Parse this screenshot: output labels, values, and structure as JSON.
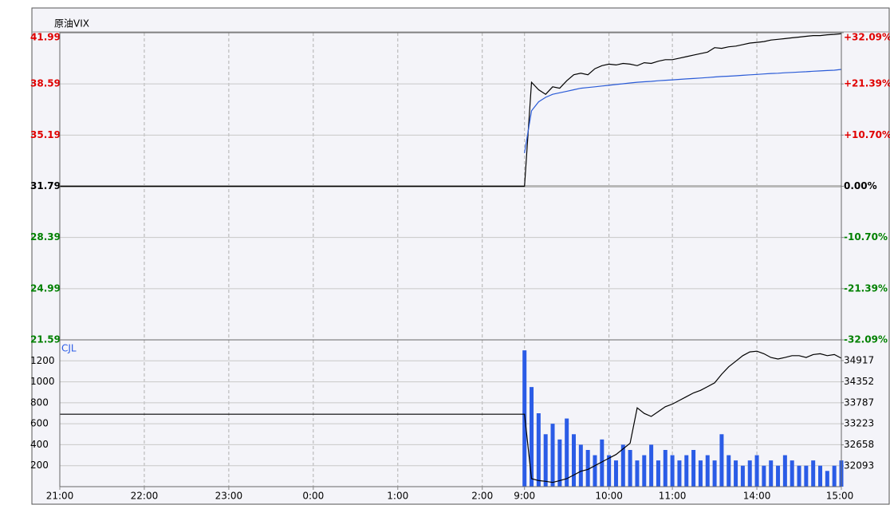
{
  "chart_data": [
    {
      "type": "line",
      "title": "原油VIX",
      "x": [
        0,
        330,
        335,
        340,
        345,
        350,
        355,
        360,
        365,
        370,
        375,
        380,
        385,
        390,
        395,
        400,
        405,
        410,
        415,
        420,
        425,
        430,
        435,
        440,
        445,
        450,
        455,
        460,
        465,
        470,
        475,
        480,
        485,
        490,
        495,
        500,
        505,
        510,
        515,
        520,
        525,
        530,
        535,
        540,
        545,
        550,
        555
      ],
      "xlim": [
        0,
        555
      ],
      "ylim": [
        21.59,
        41.99
      ],
      "yticks": [
        21.59,
        24.99,
        28.39,
        31.79,
        35.19,
        38.59,
        41.99
      ],
      "y2lim": [
        -32.09,
        32.09
      ],
      "y2ticks": [
        {
          "value": -32.09,
          "label": "-32.09%"
        },
        {
          "value": -21.39,
          "label": "-21.39%"
        },
        {
          "value": -10.7,
          "label": "-10.70%"
        },
        {
          "value": 0,
          "label": "0.00%"
        },
        {
          "value": 10.7,
          "label": "+10.70%"
        },
        {
          "value": 21.39,
          "label": "+21.39%"
        },
        {
          "value": 32.09,
          "label": "+32.09%"
        }
      ],
      "grid": true,
      "series": [
        {
          "color": "#000000",
          "values": [
            31.79,
            31.79,
            38.7,
            38.2,
            37.9,
            38.4,
            38.3,
            38.8,
            39.2,
            39.3,
            39.2,
            39.6,
            39.8,
            39.9,
            39.85,
            39.95,
            39.9,
            39.8,
            40.0,
            39.95,
            40.1,
            40.2,
            40.2,
            40.3,
            40.4,
            40.5,
            40.6,
            40.7,
            41.0,
            40.95,
            41.05,
            41.1,
            41.2,
            41.3,
            41.35,
            41.4,
            41.5,
            41.55,
            41.6,
            41.65,
            41.7,
            41.75,
            41.8,
            41.8,
            41.85,
            41.88,
            41.92
          ]
        },
        {
          "color": "#2a5bd7",
          "values": [
            null,
            34.0,
            36.8,
            37.4,
            37.7,
            37.9,
            38.0,
            38.1,
            38.2,
            38.3,
            38.35,
            38.4,
            38.45,
            38.5,
            38.55,
            38.6,
            38.65,
            38.7,
            38.73,
            38.76,
            38.8,
            38.83,
            38.86,
            38.89,
            38.92,
            38.95,
            38.98,
            39.01,
            39.05,
            39.08,
            39.1,
            39.13,
            39.16,
            39.19,
            39.22,
            39.25,
            39.28,
            39.3,
            39.33,
            39.35,
            39.38,
            39.4,
            39.43,
            39.45,
            39.48,
            39.5,
            39.55
          ]
        }
      ]
    },
    {
      "type": "bar",
      "title": "CJL",
      "x": [
        0,
        330,
        335,
        340,
        345,
        350,
        355,
        360,
        365,
        370,
        375,
        380,
        385,
        390,
        395,
        400,
        405,
        410,
        415,
        420,
        425,
        430,
        435,
        440,
        445,
        450,
        455,
        460,
        465,
        470,
        475,
        480,
        485,
        490,
        495,
        500,
        505,
        510,
        515,
        520,
        525,
        530,
        535,
        540,
        545,
        550,
        555
      ],
      "xlim": [
        0,
        555
      ],
      "xticks": [
        {
          "value": 0,
          "label": "21:00"
        },
        {
          "value": 60,
          "label": "22:00"
        },
        {
          "value": 120,
          "label": "23:00"
        },
        {
          "value": 180,
          "label": "0:00"
        },
        {
          "value": 240,
          "label": "1:00"
        },
        {
          "value": 300,
          "label": "2:00"
        },
        {
          "value": 330,
          "label": "9:00"
        },
        {
          "value": 390,
          "label": "10:00"
        },
        {
          "value": 435,
          "label": "11:00"
        },
        {
          "value": 495,
          "label": "14:00"
        },
        {
          "value": 555,
          "label": "15:00"
        }
      ],
      "ylim": [
        0,
        1400
      ],
      "yticks": [
        200,
        400,
        600,
        800,
        1000,
        1200
      ],
      "y2lim": [
        31537,
        35473
      ],
      "y2ticks": [
        32093,
        32658,
        33223,
        33787,
        34352,
        34917
      ],
      "grid": true,
      "series": [
        {
          "type": "bar",
          "color": "#2b5ce6",
          "values": [
            null,
            1300,
            950,
            700,
            500,
            600,
            450,
            650,
            500,
            400,
            350,
            300,
            450,
            300,
            250,
            400,
            350,
            250,
            300,
            400,
            250,
            350,
            300,
            250,
            300,
            350,
            250,
            300,
            250,
            500,
            300,
            250,
            200,
            250,
            300,
            200,
            250,
            200,
            300,
            250,
            200,
            200,
            250,
            200,
            150,
            200,
            250
          ]
        },
        {
          "type": "line",
          "axis": "y2",
          "color": "#000000",
          "values": [
            33480,
            33480,
            31750,
            31700,
            31680,
            31650,
            31700,
            31750,
            31850,
            31950,
            32000,
            32100,
            32200,
            32300,
            32400,
            32550,
            32700,
            33650,
            33500,
            33420,
            33550,
            33680,
            33750,
            33850,
            33950,
            34050,
            34120,
            34220,
            34320,
            34550,
            34750,
            34900,
            35050,
            35150,
            35170,
            35100,
            35000,
            34960,
            35000,
            35050,
            35050,
            35000,
            35080,
            35100,
            35050,
            35080,
            34980
          ]
        }
      ]
    }
  ]
}
